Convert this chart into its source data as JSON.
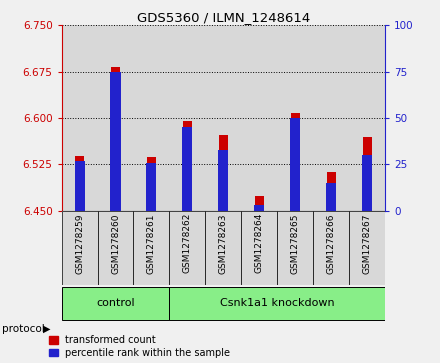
{
  "title": "GDS5360 / ILMN_1248614",
  "samples": [
    "GSM1278259",
    "GSM1278260",
    "GSM1278261",
    "GSM1278262",
    "GSM1278263",
    "GSM1278264",
    "GSM1278265",
    "GSM1278266",
    "GSM1278267"
  ],
  "transformed_counts": [
    6.538,
    6.683,
    6.537,
    6.595,
    6.572,
    6.474,
    6.608,
    6.513,
    6.57
  ],
  "percentile_ranks": [
    27,
    75,
    26,
    45,
    33,
    3,
    50,
    15,
    30
  ],
  "ylim_left": [
    6.45,
    6.75
  ],
  "ylim_right": [
    0,
    100
  ],
  "yticks_left": [
    6.45,
    6.525,
    6.6,
    6.675,
    6.75
  ],
  "yticks_right": [
    0,
    25,
    50,
    75,
    100
  ],
  "bar_color_red": "#cc0000",
  "bar_color_blue": "#2222cc",
  "protocol_labels": [
    "control",
    "Csnk1a1 knockdown"
  ],
  "protocol_color": "#88ee88",
  "tick_label_color_left": "#cc0000",
  "tick_label_color_right": "#2222cc",
  "legend_red_label": "transformed count",
  "legend_blue_label": "percentile rank within the sample",
  "col_bg_color": "#d8d8d8",
  "plot_bg_color": "#ffffff",
  "fig_bg_color": "#f0f0f0",
  "bar_width": 0.25,
  "blue_bar_width": 0.28
}
